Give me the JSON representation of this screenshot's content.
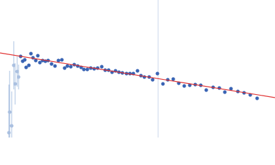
{
  "chart_data": {
    "type": "scatter",
    "xlim": [
      0,
      400
    ],
    "ylim": [
      0,
      200
    ],
    "vline": {
      "x": 230,
      "color": "#c8d4e8"
    },
    "series": [
      {
        "color": "#aac0e0",
        "x": [
          13,
          14,
          17,
          20,
          22,
          25,
          27
        ],
        "values": [
          7,
          37,
          17,
          105,
          78,
          96,
          88
        ],
        "errors": [
          70,
          60,
          50,
          35,
          30,
          22,
          18
        ]
      },
      {
        "color": "#3a64b4",
        "x": [
          30,
          33,
          36,
          38,
          42,
          45,
          48,
          52,
          55,
          58,
          62,
          66,
          70,
          75,
          80,
          85,
          90,
          94,
          98,
          103,
          108,
          113,
          118,
          122,
          127,
          132,
          137,
          142,
          148,
          153,
          158,
          163,
          168,
          173,
          178,
          184,
          189,
          194,
          200,
          205,
          210,
          217,
          222,
          229,
          237,
          244,
          252,
          260,
          268,
          276,
          284,
          292,
          300,
          310,
          319,
          327,
          336,
          346,
          355,
          364,
          374
        ],
        "values": [
          118,
          111,
          113,
          102,
          105,
          122,
          116,
          112,
          119,
          109,
          112,
          111,
          112,
          107,
          104,
          112,
          113,
          101,
          104,
          103,
          106,
          104,
          102,
          99,
          99,
          101,
          100,
          101,
          103,
          98,
          98,
          95,
          97,
          95,
          94,
          93,
          93,
          93,
          97,
          90,
          88,
          88,
          84,
          93,
          78,
          84,
          85,
          79,
          75,
          76,
          77,
          76,
          69,
          73,
          72,
          66,
          71,
          67,
          65,
          62,
          57
        ]
      },
      {
        "type": "line",
        "color": "#e03030",
        "x": [
          0,
          400
        ],
        "values": [
          123,
          58
        ]
      }
    ]
  }
}
